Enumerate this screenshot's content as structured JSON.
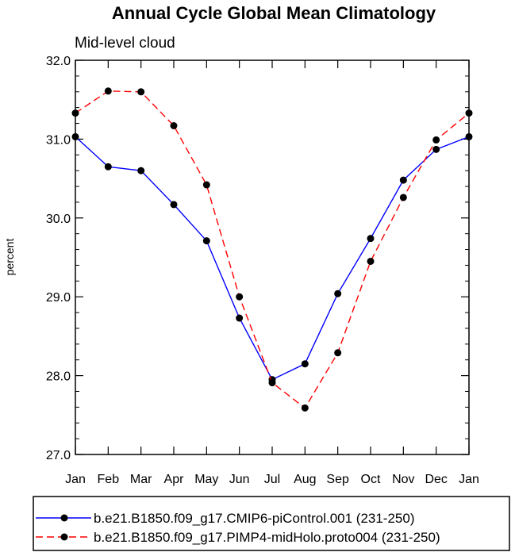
{
  "chart_data": {
    "type": "line",
    "title": "Annual Cycle Global Mean Climatology",
    "subtitle": "Mid-level cloud",
    "xlabel": "",
    "ylabel": "percent",
    "categories": [
      "Jan",
      "Feb",
      "Mar",
      "Apr",
      "May",
      "Jun",
      "Jul",
      "Aug",
      "Sep",
      "Oct",
      "Nov",
      "Dec",
      "Jan"
    ],
    "ylim": [
      27.0,
      32.0
    ],
    "yticks": [
      "27.0",
      "28.0",
      "29.0",
      "30.0",
      "31.0",
      "32.0"
    ],
    "grid": false,
    "legend_position": "bottom",
    "series": [
      {
        "name": "b.e21.B1850.f09_g17.CMIP6-piControl.001 (231-250)",
        "color": "#0000ff",
        "dash": "solid",
        "values": [
          31.03,
          30.65,
          30.6,
          30.17,
          29.71,
          28.73,
          27.95,
          28.15,
          29.04,
          29.74,
          30.48,
          30.87,
          31.03
        ]
      },
      {
        "name": "b.e21.B1850.f09_g17.PIMP4-midHolo.proto004 (231-250)",
        "color": "#ff0000",
        "dash": "dashed",
        "values": [
          31.33,
          31.61,
          31.6,
          31.17,
          30.42,
          29.0,
          27.91,
          27.59,
          28.29,
          29.45,
          30.26,
          30.99,
          31.33
        ]
      }
    ]
  }
}
